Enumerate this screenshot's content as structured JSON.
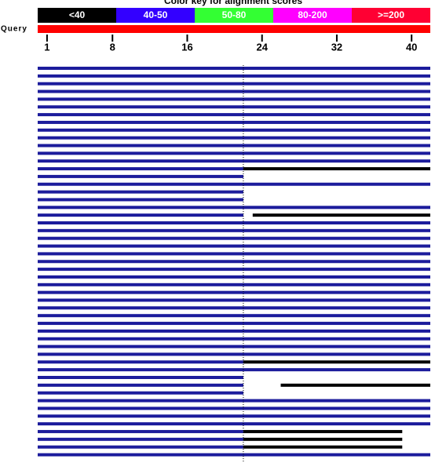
{
  "chart_data": {
    "type": "alignment",
    "title": "Color key for alignment scores",
    "color_key": [
      {
        "label": "<40",
        "color": "#000000"
      },
      {
        "label": "40-50",
        "color": "#3300ff"
      },
      {
        "label": "50-80",
        "color": "#33ff33"
      },
      {
        "label": "80-200",
        "color": "#ff00ff"
      },
      {
        "label": ">=200",
        "color": "#ff0033"
      }
    ],
    "query_label": "Query",
    "query_color": "#ff0000",
    "xlim": [
      0,
      42
    ],
    "xticks": [
      1,
      8,
      16,
      24,
      32,
      40
    ],
    "divider": 22,
    "hits": [
      [
        [
          0,
          42,
          "#1c1c9c"
        ]
      ],
      [
        [
          0,
          42,
          "#1c1c9c"
        ]
      ],
      [
        [
          0,
          42,
          "#1c1c9c"
        ]
      ],
      [
        [
          0,
          42,
          "#1c1c9c"
        ]
      ],
      [
        [
          0,
          42,
          "#1c1c9c"
        ]
      ],
      [
        [
          0,
          42,
          "#1c1c9c"
        ]
      ],
      [
        [
          0,
          42,
          "#1c1c9c"
        ]
      ],
      [
        [
          0,
          42,
          "#1c1c9c"
        ]
      ],
      [
        [
          0,
          42,
          "#1c1c9c"
        ]
      ],
      [
        [
          0,
          42,
          "#1c1c9c"
        ]
      ],
      [
        [
          0,
          42,
          "#1c1c9c"
        ]
      ],
      [
        [
          0,
          42,
          "#1c1c9c"
        ]
      ],
      [
        [
          0,
          42,
          "#1c1c9c"
        ]
      ],
      [
        [
          0,
          22,
          "#1c1c9c"
        ],
        [
          22,
          42,
          "#000000"
        ]
      ],
      [
        [
          0,
          22,
          "#1c1c9c"
        ]
      ],
      [
        [
          0,
          42,
          "#1c1c9c"
        ]
      ],
      [
        [
          0,
          22,
          "#1c1c9c"
        ]
      ],
      [
        [
          0,
          22,
          "#1c1c9c"
        ]
      ],
      [
        [
          0,
          42,
          "#1c1c9c"
        ]
      ],
      [
        [
          0,
          22,
          "#1c1c9c"
        ],
        [
          23,
          42,
          "#000000"
        ]
      ],
      [
        [
          0,
          42,
          "#1c1c9c"
        ]
      ],
      [
        [
          0,
          42,
          "#1c1c9c"
        ]
      ],
      [
        [
          0,
          42,
          "#1c1c9c"
        ]
      ],
      [
        [
          0,
          42,
          "#1c1c9c"
        ]
      ],
      [
        [
          0,
          42,
          "#1c1c9c"
        ]
      ],
      [
        [
          0,
          42,
          "#1c1c9c"
        ]
      ],
      [
        [
          0,
          42,
          "#1c1c9c"
        ]
      ],
      [
        [
          0,
          42,
          "#1c1c9c"
        ]
      ],
      [
        [
          0,
          42,
          "#1c1c9c"
        ]
      ],
      [
        [
          0,
          42,
          "#1c1c9c"
        ]
      ],
      [
        [
          0,
          42,
          "#1c1c9c"
        ]
      ],
      [
        [
          0,
          42,
          "#1c1c9c"
        ]
      ],
      [
        [
          0,
          42,
          "#1c1c9c"
        ]
      ],
      [
        [
          0,
          42,
          "#1c1c9c"
        ]
      ],
      [
        [
          0,
          42,
          "#1c1c9c"
        ]
      ],
      [
        [
          0,
          42,
          "#1c1c9c"
        ]
      ],
      [
        [
          0,
          42,
          "#1c1c9c"
        ]
      ],
      [
        [
          0,
          42,
          "#1c1c9c"
        ]
      ],
      [
        [
          0,
          22,
          "#1c1c9c"
        ],
        [
          22,
          42,
          "#000000"
        ]
      ],
      [
        [
          0,
          42,
          "#1c1c9c"
        ]
      ],
      [
        [
          0,
          22,
          "#1c1c9c"
        ]
      ],
      [
        [
          0,
          22,
          "#1c1c9c"
        ],
        [
          26,
          42,
          "#000000"
        ]
      ],
      [
        [
          0,
          22,
          "#1c1c9c"
        ]
      ],
      [
        [
          0,
          42,
          "#1c1c9c"
        ]
      ],
      [
        [
          0,
          42,
          "#1c1c9c"
        ]
      ],
      [
        [
          0,
          42,
          "#1c1c9c"
        ]
      ],
      [
        [
          0,
          42,
          "#1c1c9c"
        ]
      ],
      [
        [
          0,
          22,
          "#1c1c9c"
        ],
        [
          22,
          39,
          "#000000"
        ]
      ],
      [
        [
          0,
          22,
          "#1c1c9c"
        ],
        [
          22,
          39,
          "#000000"
        ]
      ],
      [
        [
          0,
          22,
          "#1c1c9c"
        ],
        [
          22,
          39,
          "#000000"
        ]
      ],
      [
        [
          0,
          42,
          "#1c1c9c"
        ]
      ]
    ]
  }
}
